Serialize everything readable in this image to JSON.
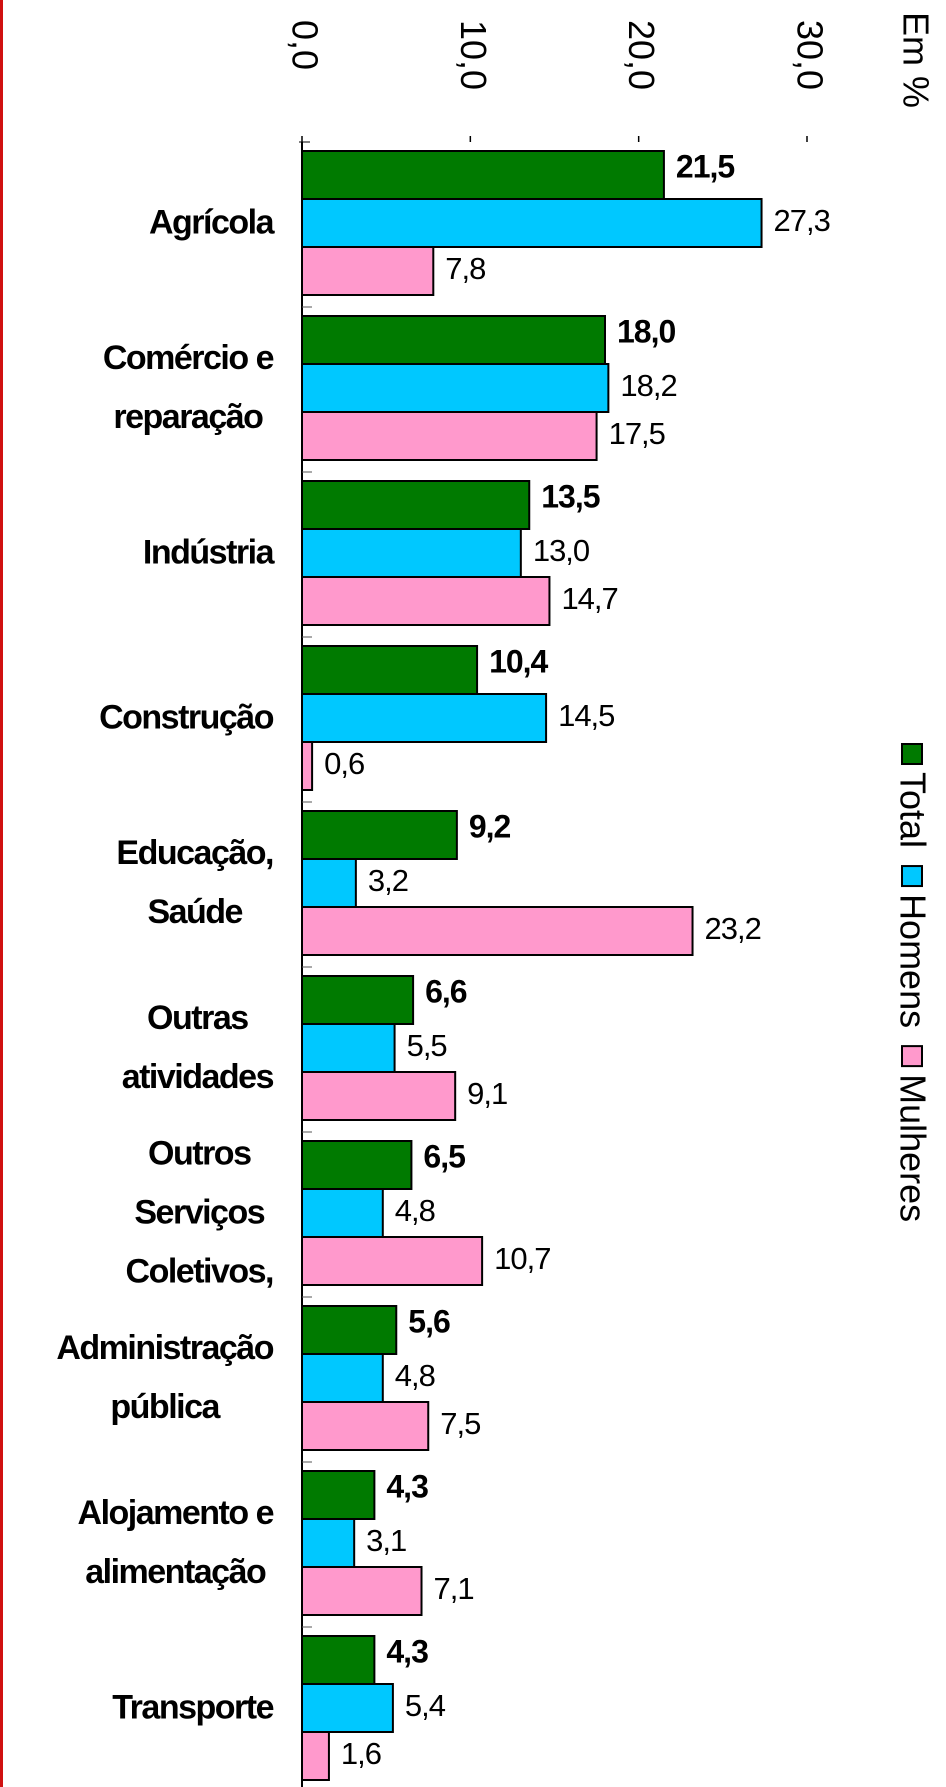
{
  "chart_data": {
    "type": "bar",
    "orientation": "horizontal",
    "unit_label": "Em %",
    "categories": [
      "Agrícola",
      "Comércio e\nreparação",
      "Indústria",
      "Construção",
      "Educação,\nSaúde",
      "Outras\natividades",
      "Outros\nServiços\nColetivos,",
      "Administração\npública",
      "Alojamento e\nalimentação",
      "Transporte"
    ],
    "series": [
      {
        "name": "Total",
        "color": "#007a00",
        "values": [
          21.5,
          18.0,
          13.5,
          10.4,
          9.2,
          6.6,
          6.5,
          5.6,
          4.3,
          4.3
        ],
        "value_labels": [
          "21,5",
          "18,0",
          "13,5",
          "10,4",
          "9,2",
          "6,6",
          "6,5",
          "5,6",
          "4,3",
          "4,3"
        ]
      },
      {
        "name": "Homens",
        "color": "#00c8ff",
        "values": [
          27.3,
          18.2,
          13.0,
          14.5,
          3.2,
          5.5,
          4.8,
          4.8,
          3.1,
          5.4
        ],
        "value_labels": [
          "27,3",
          "18,2",
          "13,0",
          "14,5",
          "3,2",
          "5,5",
          "4,8",
          "4,8",
          "3,1",
          "5,4"
        ]
      },
      {
        "name": "Mulheres",
        "color": "#ff99cc",
        "values": [
          7.8,
          17.5,
          14.7,
          0.6,
          23.2,
          9.1,
          10.7,
          7.5,
          7.1,
          1.6
        ],
        "value_labels": [
          "7,8",
          "17,5",
          "14,7",
          "0,6",
          "23,2",
          "9,1",
          "10,7",
          "7,5",
          "7,1",
          "1,6"
        ]
      }
    ],
    "ylim": [
      0,
      30
    ],
    "yticks": [
      {
        "value": 0,
        "label": "0,0"
      },
      {
        "value": 10,
        "label": "10,0"
      },
      {
        "value": 20,
        "label": "20,0"
      },
      {
        "value": 30,
        "label": "30,0"
      }
    ],
    "legend": "right"
  }
}
